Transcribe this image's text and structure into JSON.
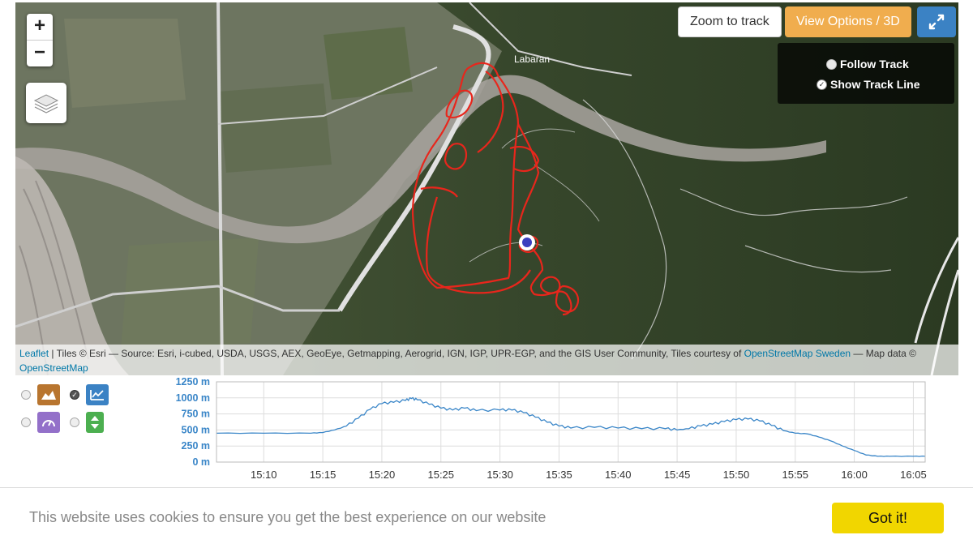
{
  "map": {
    "zoom_in_label": "+",
    "zoom_out_label": "−",
    "layers_icon": "layers-icon",
    "zoom_to_track_label": "Zoom to track",
    "view_options_label": "View Options / 3D",
    "expand_icon": "fullscreen-expand-icon",
    "follow_track_label": "Follow Track",
    "show_track_line_label": "Show Track Line",
    "place_label": "Labaran",
    "track_color": "#e8261c"
  },
  "attribution": {
    "leaflet_link": "Leaflet",
    "tiles_text": " | Tiles © Esri — Source: Esri, i-cubed, USDA, USGS, AEX, GeoEye, Getmapping, Aerogrid, IGN, IGP, UPR-EGP, and the GIS User Community, Tiles courtesy of ",
    "osm_sweden_link": "OpenStreetMap Sweden",
    "map_data_text": " — Map data © ",
    "osm_link": "OpenStreetMap"
  },
  "elevation_legend": {
    "items": [
      {
        "icon": "elevation-area-icon",
        "color": "#b8752f",
        "selected": false
      },
      {
        "icon": "elevation-line-icon",
        "color": "#3b82c4",
        "selected": true
      },
      {
        "icon": "speed-gauge-icon",
        "color": "#9370c9",
        "selected": false
      },
      {
        "icon": "up-down-arrows-icon",
        "color": "#4caf50",
        "selected": false
      }
    ]
  },
  "chart_data": {
    "type": "line",
    "title": "",
    "xlabel": "",
    "ylabel": "",
    "x_ticks": [
      "15:10",
      "15:15",
      "15:20",
      "15:25",
      "15:30",
      "15:35",
      "15:40",
      "15:45",
      "15:50",
      "15:55",
      "16:00",
      "16:05"
    ],
    "y_ticks": [
      "0 m",
      "250 m",
      "500 m",
      "750 m",
      "1000 m",
      "1250 m"
    ],
    "ylim": [
      0,
      1250
    ],
    "xlim": [
      "15:06",
      "16:06"
    ],
    "grid": true,
    "series": [
      {
        "color": "#3a86c8",
        "points": [
          [
            "15:06",
            450
          ],
          [
            "15:10",
            450
          ],
          [
            "15:14",
            450
          ],
          [
            "15:15",
            460
          ],
          [
            "15:16",
            500
          ],
          [
            "15:17",
            560
          ],
          [
            "15:18",
            680
          ],
          [
            "15:19",
            820
          ],
          [
            "15:20",
            910
          ],
          [
            "15:21",
            930
          ],
          [
            "15:22",
            960
          ],
          [
            "15:22:30",
            990
          ],
          [
            "15:23",
            970
          ],
          [
            "15:24",
            900
          ],
          [
            "15:25",
            840
          ],
          [
            "15:26",
            810
          ],
          [
            "15:27",
            840
          ],
          [
            "15:28",
            800
          ],
          [
            "15:30",
            810
          ],
          [
            "15:31",
            810
          ],
          [
            "15:32",
            770
          ],
          [
            "15:33",
            700
          ],
          [
            "15:34",
            620
          ],
          [
            "15:35",
            560
          ],
          [
            "15:36",
            530
          ],
          [
            "15:38",
            540
          ],
          [
            "15:40",
            530
          ],
          [
            "15:42",
            520
          ],
          [
            "15:44",
            520
          ],
          [
            "15:45",
            500
          ],
          [
            "15:46",
            520
          ],
          [
            "15:47",
            560
          ],
          [
            "15:48",
            590
          ],
          [
            "15:49",
            630
          ],
          [
            "15:50",
            660
          ],
          [
            "15:51",
            670
          ],
          [
            "15:52",
            640
          ],
          [
            "15:53",
            570
          ],
          [
            "15:54",
            490
          ],
          [
            "15:55",
            450
          ],
          [
            "15:56",
            440
          ],
          [
            "15:57",
            390
          ],
          [
            "15:58",
            330
          ],
          [
            "15:59",
            250
          ],
          [
            "16:00",
            180
          ],
          [
            "16:01",
            110
          ],
          [
            "16:02",
            90
          ],
          [
            "16:03",
            90
          ],
          [
            "16:05",
            90
          ],
          [
            "16:06",
            90
          ]
        ]
      }
    ]
  },
  "cookie": {
    "message": "This website uses cookies to ensure you get the best experience on our website",
    "button_label": "Got it!"
  }
}
